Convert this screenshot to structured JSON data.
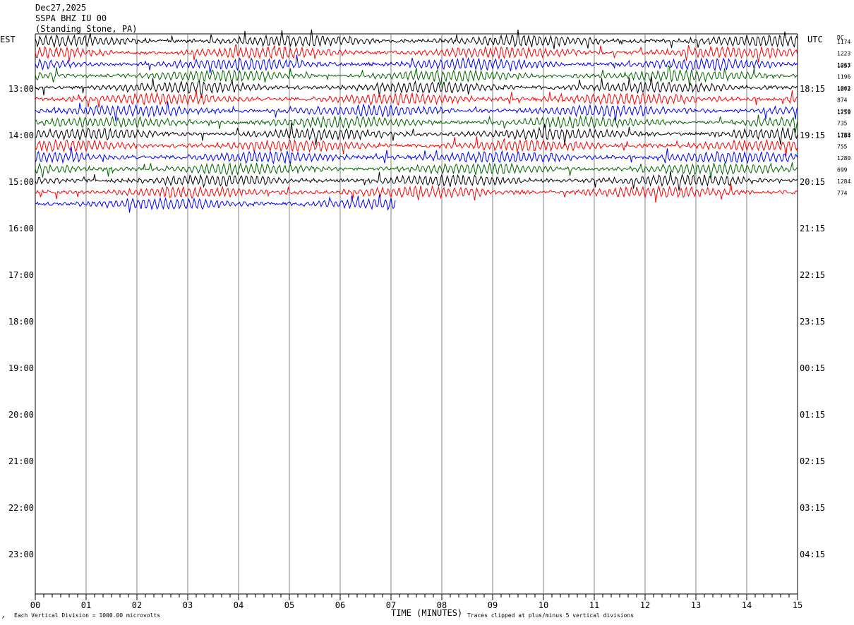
{
  "header": {
    "date": "Dec27,2025",
    "station": "SSPA BHZ IU 00",
    "location": "(Standing Stone, PA)"
  },
  "left_zone_label": "EST",
  "right_zone_label": "UTC",
  "dc_label": "DC",
  "footer": {
    "division_note": "Each Vertical Division = 1000.00 microvolts",
    "clip_note": "Traces clipped at plus/minus 5 vertical divisions",
    "corner_mark": "↗"
  },
  "chart_data": {
    "type": "line",
    "title": "",
    "xlabel": "TIME (MINUTES)",
    "ylabel": "",
    "x_ticks": [
      "00",
      "01",
      "02",
      "03",
      "04",
      "05",
      "06",
      "07",
      "08",
      "09",
      "10",
      "11",
      "12",
      "13",
      "14",
      "15"
    ],
    "xlim": [
      0,
      15
    ],
    "left_time_labels": [
      "13:00",
      "14:00",
      "15:00",
      "16:00",
      "17:00",
      "18:00",
      "19:00",
      "20:00",
      "21:00",
      "22:00",
      "23:00"
    ],
    "right_time_labels": [
      "18:15",
      "19:15",
      "20:15",
      "21:15",
      "22:15",
      "23:15",
      "00:15",
      "01:15",
      "02:15",
      "03:15",
      "04:15"
    ],
    "trace_colors": [
      "#000000",
      "#ff0000",
      "#0000ff",
      "#006400"
    ],
    "trace_count": 15,
    "last_trace_end_minute": 7.1,
    "dc_offsets": [
      "1174",
      "1223",
      "1263",
      "1196",
      "1062",
      "874",
      "1279",
      "735",
      "1788",
      "755",
      "1280",
      "699",
      "1284",
      "774"
    ],
    "dc_offsets_overlap": [
      "1057",
      "1073",
      "1759",
      "1184"
    ],
    "grid": true,
    "minute_gridlines": true
  }
}
